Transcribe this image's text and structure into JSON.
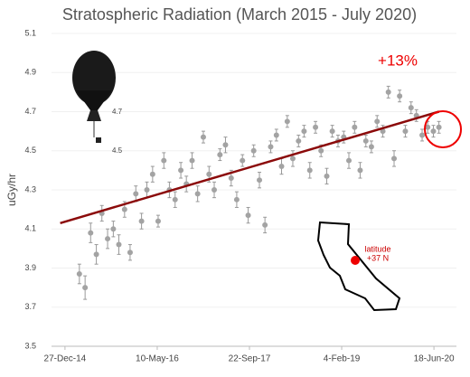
{
  "chart_data": {
    "type": "scatter",
    "title": "Stratospheric Radiation (March 2015 - July 2020)",
    "y_label": "uGy/hr",
    "x": [
      "2015-03-15",
      "2015-04-15",
      "2015-05-15",
      "2015-06-15",
      "2015-07-15",
      "2015-08-15",
      "2015-09-15",
      "2015-10-15",
      "2015-11-15",
      "2015-12-15",
      "2016-01-15",
      "2016-02-15",
      "2016-03-15",
      "2016-04-15",
      "2016-05-15",
      "2016-06-15",
      "2016-07-15",
      "2016-08-15",
      "2016-09-15",
      "2016-10-15",
      "2016-11-15",
      "2016-12-15",
      "2017-01-15",
      "2017-02-15",
      "2017-03-15",
      "2017-04-15",
      "2017-05-15",
      "2017-06-15",
      "2017-07-15",
      "2017-08-15",
      "2017-09-15",
      "2017-10-15",
      "2017-11-15",
      "2017-12-15",
      "2018-01-15",
      "2018-02-15",
      "2018-03-15",
      "2018-04-15",
      "2018-05-15",
      "2018-06-15",
      "2018-07-15",
      "2018-08-15",
      "2018-09-15",
      "2018-10-15",
      "2018-11-15",
      "2018-12-15",
      "2019-01-15",
      "2019-02-15",
      "2019-03-15",
      "2019-04-15",
      "2019-05-15",
      "2019-06-15",
      "2019-07-15",
      "2019-08-15",
      "2019-09-15",
      "2019-10-15",
      "2019-11-15",
      "2019-12-15",
      "2020-01-15",
      "2020-02-15",
      "2020-03-15",
      "2020-04-15",
      "2020-05-15",
      "2020-06-15",
      "2020-07-15"
    ],
    "values": [
      3.87,
      3.8,
      4.08,
      3.97,
      4.18,
      4.05,
      4.1,
      4.02,
      4.2,
      3.98,
      4.28,
      4.14,
      4.3,
      4.38,
      4.14,
      4.45,
      4.3,
      4.25,
      4.4,
      4.33,
      4.45,
      4.28,
      4.57,
      4.38,
      4.3,
      4.48,
      4.53,
      4.36,
      4.25,
      4.45,
      4.17,
      4.5,
      4.35,
      4.12,
      4.52,
      4.58,
      4.42,
      4.65,
      4.46,
      4.55,
      4.6,
      4.4,
      4.62,
      4.5,
      4.37,
      4.6,
      4.55,
      4.57,
      4.45,
      4.62,
      4.4,
      4.55,
      4.52,
      4.65,
      4.6,
      4.8,
      4.46,
      4.78,
      4.6,
      4.72,
      4.68,
      4.58,
      4.62,
      4.6,
      4.62
    ],
    "errors": [
      0.05,
      0.06,
      0.05,
      0.05,
      0.04,
      0.05,
      0.04,
      0.05,
      0.04,
      0.04,
      0.04,
      0.04,
      0.04,
      0.04,
      0.03,
      0.04,
      0.04,
      0.04,
      0.04,
      0.04,
      0.04,
      0.04,
      0.03,
      0.04,
      0.04,
      0.03,
      0.04,
      0.04,
      0.04,
      0.03,
      0.04,
      0.03,
      0.04,
      0.04,
      0.03,
      0.03,
      0.04,
      0.03,
      0.04,
      0.03,
      0.03,
      0.04,
      0.03,
      0.03,
      0.04,
      0.03,
      0.03,
      0.03,
      0.04,
      0.03,
      0.04,
      0.03,
      0.03,
      0.03,
      0.03,
      0.03,
      0.04,
      0.03,
      0.03,
      0.03,
      0.03,
      0.03,
      0.03,
      0.03,
      0.03
    ],
    "color": "#a3a3a3",
    "trend": {
      "x": [
        "2014-12-01",
        "2020-07-15"
      ],
      "values": [
        4.13,
        4.7
      ],
      "color": "#8b0a0a"
    },
    "xlim": [
      "2014-10-15",
      "2020-10-18"
    ],
    "xticks": [
      {
        "value": "2014-12-27",
        "label": "27-Dec-14"
      },
      {
        "value": "2016-05-10",
        "label": "10-May-16"
      },
      {
        "value": "2017-09-22",
        "label": "22-Sep-17"
      },
      {
        "value": "2019-02-04",
        "label": "4-Feb-19"
      },
      {
        "value": "2020-06-18",
        "label": "18-Jun-20"
      }
    ],
    "ylim": [
      3.5,
      5.1
    ],
    "yticks": [
      3.5,
      3.7,
      3.9,
      4.1,
      4.3,
      4.5,
      4.7,
      4.9,
      5.1
    ],
    "grid": true,
    "annotations": {
      "change": "+13%",
      "latitude": "latitude",
      "latitude_value": "+37 N",
      "balloon_high": "4.7",
      "balloon_low": "4.5"
    }
  }
}
